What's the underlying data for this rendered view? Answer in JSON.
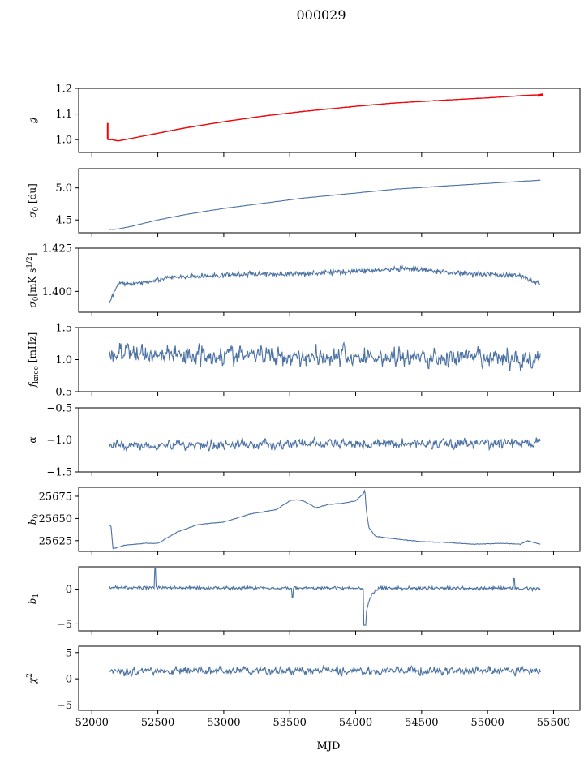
{
  "figure": {
    "title": "000029",
    "xlabel": "MJD",
    "x_ticks": [
      "52000",
      "52500",
      "53000",
      "53500",
      "54000",
      "54500",
      "55000",
      "55500"
    ]
  },
  "colors": {
    "line": "#4c72a4",
    "fit": "#ff0000",
    "axes": "#000000"
  },
  "chart_data": [
    {
      "type": "line",
      "ylabel_main": "g",
      "ylabel_sub": "",
      "ylim": [
        0.95,
        1.2
      ],
      "xlim": [
        51900,
        55700
      ],
      "y_ticks": [
        {
          "v": 1.0,
          "t": "1.0"
        },
        {
          "v": 1.1,
          "t": "1.1"
        },
        {
          "v": 1.2,
          "t": "1.2"
        }
      ],
      "series": [
        {
          "style": "main",
          "x": [
            52120,
            52150,
            52200,
            52300,
            52500,
            52700,
            53000,
            53300,
            53600,
            54000,
            54300,
            54600,
            55000,
            55300,
            55400
          ],
          "y": [
            1.0,
            1.0,
            0.995,
            1.005,
            1.025,
            1.045,
            1.07,
            1.092,
            1.11,
            1.13,
            1.143,
            1.152,
            1.163,
            1.173,
            1.175
          ],
          "noise": 0.002
        }
      ]
    },
    {
      "type": "line",
      "ylabel_main": "σ",
      "ylabel_sub": "0",
      "ylabel_tail": " [du]",
      "ylim": [
        4.3,
        5.3
      ],
      "xlim": [
        51900,
        55700
      ],
      "y_ticks": [
        {
          "v": 4.5,
          "t": "4.5"
        },
        {
          "v": 5.0,
          "t": "5.0"
        }
      ],
      "series": [
        {
          "style": "main",
          "x": [
            52130,
            52200,
            52300,
            52500,
            52700,
            53000,
            53300,
            53600,
            54000,
            54300,
            54600,
            55000,
            55400
          ],
          "y": [
            4.35,
            4.36,
            4.4,
            4.5,
            4.58,
            4.68,
            4.76,
            4.84,
            4.92,
            4.98,
            5.02,
            5.07,
            5.12
          ],
          "noise": 0.004
        }
      ]
    },
    {
      "type": "line",
      "ylabel_main": "σ",
      "ylabel_sub": "0",
      "ylabel_tail": "[mK s",
      "ylabel_sup": "1/2",
      "ylabel_end": "]",
      "ylim": [
        1.388,
        1.425
      ],
      "xlim": [
        51900,
        55700
      ],
      "y_ticks": [
        {
          "v": 1.4,
          "t": "1.400"
        },
        {
          "v": 1.425,
          "t": "1.425"
        }
      ],
      "series": [
        {
          "style": "main",
          "x": [
            52130,
            52160,
            52200,
            52350,
            52600,
            52900,
            53200,
            53500,
            53800,
            54100,
            54400,
            54700,
            55000,
            55250,
            55400
          ],
          "y": [
            1.393,
            1.398,
            1.404,
            1.405,
            1.408,
            1.409,
            1.41,
            1.41,
            1.411,
            1.412,
            1.413,
            1.411,
            1.41,
            1.409,
            1.404
          ],
          "noise": 0.0022
        }
      ]
    },
    {
      "type": "line",
      "ylabel_main": "f",
      "ylabel_sub": "knee",
      "ylabel_tail": " [mHz]",
      "ylim": [
        0.5,
        1.5
      ],
      "xlim": [
        51900,
        55700
      ],
      "y_ticks": [
        {
          "v": 0.5,
          "t": "0.5"
        },
        {
          "v": 1.0,
          "t": "1.0"
        },
        {
          "v": 1.5,
          "t": "1.5"
        }
      ],
      "series": [
        {
          "style": "noisy",
          "x": [
            52130,
            55400
          ],
          "y": [
            1.1,
            1.0
          ],
          "noise": 0.16
        }
      ]
    },
    {
      "type": "line",
      "ylabel_main": "α",
      "ylabel_sub": "",
      "ylim": [
        -1.5,
        -0.5
      ],
      "xlim": [
        51900,
        55700
      ],
      "y_ticks": [
        {
          "v": -1.5,
          "t": "−1.5"
        },
        {
          "v": -1.0,
          "t": "−1.0"
        },
        {
          "v": -0.5,
          "t": "−0.5"
        }
      ],
      "series": [
        {
          "style": "noisy",
          "x": [
            52130,
            55400
          ],
          "y": [
            -1.08,
            -1.05
          ],
          "noise": 0.08
        }
      ]
    },
    {
      "type": "line",
      "ylabel_main": "b",
      "ylabel_sub": "0",
      "ylim": [
        25613,
        25685
      ],
      "xlim": [
        51900,
        55700
      ],
      "y_ticks": [
        {
          "v": 25625,
          "t": "25625"
        },
        {
          "v": 25650,
          "t": "25650"
        },
        {
          "v": 25675,
          "t": "25675"
        }
      ],
      "series": [
        {
          "style": "main",
          "x": [
            52130,
            52145,
            52160,
            52250,
            52400,
            52500,
            52650,
            52800,
            53000,
            53200,
            53400,
            53500,
            53550,
            53600,
            53700,
            53800,
            53900,
            54000,
            54060,
            54070,
            54080,
            54100,
            54150,
            54300,
            54500,
            54700,
            54900,
            55100,
            55250,
            55300,
            55400
          ],
          "y": [
            25643,
            25641,
            25616,
            25620,
            25622,
            25622,
            25635,
            25643,
            25646,
            25655,
            25660,
            25670,
            25671,
            25670,
            25662,
            25666,
            25667,
            25670,
            25678,
            25683,
            25660,
            25640,
            25630,
            25627,
            25624,
            25623,
            25621,
            25622,
            25621,
            25625,
            25621
          ],
          "noise": 0.5
        }
      ]
    },
    {
      "type": "line",
      "ylabel_main": "b",
      "ylabel_sub": "1",
      "ylim": [
        -6,
        3.2
      ],
      "xlim": [
        51900,
        55700
      ],
      "y_ticks": [
        {
          "v": -5,
          "t": "−5"
        },
        {
          "v": 0,
          "t": "0"
        }
      ],
      "series": [
        {
          "style": "spiky",
          "x": [
            52130,
            55400
          ],
          "y": [
            0.2,
            0.1
          ],
          "noise": 0.35
        }
      ]
    },
    {
      "type": "line",
      "ylabel_main": "χ",
      "ylabel_sup": "2",
      "ylim": [
        -6,
        6.2
      ],
      "xlim": [
        51900,
        55700
      ],
      "y_ticks": [
        {
          "v": -5,
          "t": "−5"
        },
        {
          "v": 0,
          "t": "0"
        },
        {
          "v": 5,
          "t": "5"
        }
      ],
      "series": [
        {
          "style": "noisy",
          "x": [
            52130,
            55400
          ],
          "y": [
            1.5,
            1.5
          ],
          "noise": 0.75
        }
      ]
    }
  ]
}
